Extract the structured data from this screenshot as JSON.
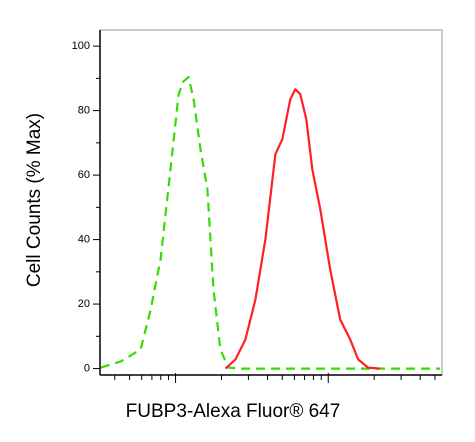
{
  "chart_data": {
    "type": "line",
    "x_label": "FUBP3-Alexa Fluor® 647",
    "y_label": "Cell Counts (% Max)",
    "xscale": "log",
    "xlim": [
      32,
      5560
    ],
    "ylim": [
      -2,
      105
    ],
    "xticks": [
      100,
      1000
    ],
    "xminorticks": [
      40,
      50,
      60,
      70,
      80,
      90,
      200,
      300,
      400,
      500,
      600,
      700,
      800,
      900,
      2000,
      3000,
      4000,
      5000
    ],
    "yticks": [
      0,
      20,
      40,
      60,
      80,
      100
    ],
    "yminorticks": [
      10,
      30,
      50,
      70,
      90
    ],
    "series": [
      {
        "color": "#33dd00",
        "dash": true,
        "x": [
          32.4,
          43.7,
          59,
          68.7,
          79.8,
          92.7,
          104.7,
          112.8,
          121.6,
          131.2,
          145.6,
          161.7,
          177.1,
          196.7,
          221.9,
          265.9,
          5395
        ],
        "values": [
          0.3,
          2.2,
          5.9,
          18.3,
          33.9,
          61.8,
          85.1,
          89.1,
          90.4,
          83.5,
          68,
          55.6,
          24.5,
          5.9,
          0.3,
          0,
          0
        ]
      },
      {
        "color": "#ff2020",
        "dash": false,
        "x": [
          212.5,
          246.6,
          286.9,
          333.6,
          387.6,
          450.6,
          500.4,
          564.4,
          608.5,
          655.8,
          718,
          785.9,
          886.8,
          1030,
          1197,
          1392,
          1571,
          1825,
          2186
        ],
        "values": [
          0,
          2.8,
          9,
          21.4,
          40.1,
          66.5,
          71.1,
          83.5,
          86.6,
          85.1,
          77.3,
          61.8,
          49.4,
          30.7,
          15.2,
          9,
          2.8,
          0.3,
          0
        ]
      }
    ]
  }
}
